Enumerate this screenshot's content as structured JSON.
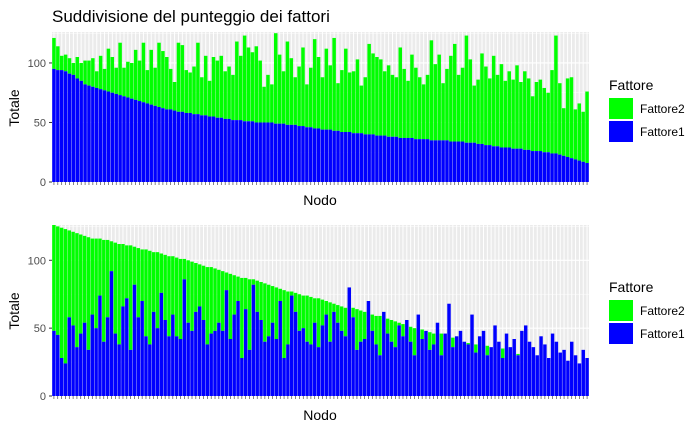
{
  "title": "Suddivisione del punteggio dei fattori",
  "colors": {
    "Fattore2": "#00ff00",
    "Fattore1": "#0000ff",
    "panel": "#ebebeb",
    "grid": "#ffffff"
  },
  "chart_data": [
    {
      "type": "bar",
      "stacked": true,
      "title": "Suddivisione del punteggio dei fattori",
      "xlabel": "Nodo",
      "ylabel": "Totale",
      "ylim": [
        0,
        126
      ],
      "yticks": [
        0,
        50,
        100
      ],
      "sorted_by": "Fattore1 descending",
      "legend": {
        "title": "Fattore",
        "entries": [
          "Fattore2",
          "Fattore1"
        ],
        "position": "right"
      },
      "series": [
        {
          "name": "Fattore1",
          "values": [
            95,
            94,
            94,
            93,
            91,
            90,
            87,
            85,
            82,
            81,
            80,
            79,
            78,
            77,
            76,
            75,
            74,
            73,
            72,
            71,
            70,
            69,
            68,
            67,
            66,
            65,
            64,
            63,
            62,
            61,
            61,
            60,
            59,
            59,
            58,
            58,
            57,
            57,
            56,
            56,
            55,
            55,
            54,
            54,
            53,
            53,
            52,
            52,
            52,
            51,
            51,
            51,
            50,
            50,
            50,
            50,
            50,
            49,
            49,
            49,
            48,
            48,
            48,
            47,
            47,
            46,
            46,
            45,
            45,
            44,
            44,
            44,
            43,
            43,
            42,
            42,
            42,
            41,
            41,
            41,
            40,
            40,
            40,
            39,
            39,
            39,
            38,
            38,
            38,
            37,
            37,
            37,
            37,
            36,
            36,
            36,
            36,
            35,
            35,
            35,
            35,
            35,
            34,
            34,
            34,
            34,
            33,
            33,
            33,
            32,
            32,
            31,
            31,
            30,
            30,
            29,
            29,
            29,
            28,
            28,
            28,
            27,
            27,
            26,
            26,
            26,
            25,
            25,
            24,
            24,
            23,
            22,
            21,
            20,
            19,
            18,
            17,
            16
          ]
        },
        {
          "name": "Fattore2",
          "values": [
            26,
            20,
            12,
            14,
            13,
            10,
            18,
            15,
            20,
            21,
            24,
            14,
            28,
            18,
            36,
            30,
            22,
            44,
            24,
            30,
            30,
            42,
            34,
            50,
            28,
            46,
            32,
            54,
            48,
            44,
            34,
            24,
            58,
            56,
            36,
            34,
            40,
            60,
            32,
            50,
            30,
            50,
            48,
            52,
            40,
            44,
            38,
            66,
            54,
            72,
            62,
            58,
            64,
            52,
            30,
            40,
            32,
            76,
            58,
            44,
            70,
            56,
            40,
            50,
            66,
            36,
            50,
            75,
            60,
            44,
            68,
            54,
            78,
            40,
            52,
            70,
            50,
            52,
            62,
            40,
            48,
            76,
            68,
            66,
            64,
            54,
            60,
            52,
            50,
            76,
            58,
            48,
            70,
            60,
            52,
            46,
            54,
            84,
            64,
            72,
            48,
            60,
            72,
            82,
            56,
            62,
            90,
            70,
            48,
            54,
            76,
            66,
            56,
            76,
            60,
            70,
            56,
            64,
            58,
            70,
            56,
            66,
            60,
            46,
            58,
            60,
            54,
            50,
            70,
            99,
            60,
            40,
            66,
            68,
            42,
            48,
            42,
            60
          ]
        }
      ]
    },
    {
      "type": "bar",
      "stacked": true,
      "title": "",
      "xlabel": "Nodo",
      "ylabel": "Totale",
      "ylim": [
        0,
        126
      ],
      "yticks": [
        0,
        50,
        100
      ],
      "sorted_by": "Totale descending",
      "legend": {
        "title": "Fattore",
        "entries": [
          "Fattore2",
          "Fattore1"
        ],
        "position": "right"
      },
      "series": [
        {
          "name": "Fattore1",
          "values": [
            48,
            45,
            28,
            24,
            58,
            52,
            36,
            46,
            54,
            34,
            60,
            50,
            74,
            40,
            58,
            92,
            46,
            38,
            66,
            72,
            34,
            82,
            58,
            70,
            44,
            38,
            62,
            50,
            76,
            56,
            44,
            60,
            44,
            42,
            86,
            54,
            48,
            62,
            66,
            56,
            38,
            46,
            48,
            54,
            48,
            78,
            42,
            60,
            70,
            28,
            64,
            34,
            82,
            62,
            56,
            40,
            44,
            54,
            42,
            70,
            28,
            38,
            74,
            62,
            48,
            50,
            40,
            38,
            54,
            36,
            52,
            60,
            40,
            62,
            54,
            48,
            44,
            80,
            58,
            34,
            40,
            42,
            70,
            48,
            38,
            30,
            62,
            46,
            40,
            36,
            52,
            44,
            56,
            40,
            30,
            60,
            42,
            48,
            34,
            38,
            54,
            30,
            46,
            68,
            36,
            44,
            48,
            40,
            38,
            60,
            32,
            44,
            48,
            30,
            36,
            52,
            40,
            28,
            46,
            36,
            42,
            30,
            48,
            52,
            40,
            36,
            30,
            44,
            38,
            28,
            46,
            40,
            32,
            34,
            26,
            40,
            30,
            24,
            34,
            28
          ]
        },
        {
          "name": "Fattore2",
          "values": [
            78,
            80,
            96,
            99,
            64,
            69,
            84,
            73,
            64,
            83,
            56,
            66,
            42,
            75,
            57,
            22,
            67,
            74,
            46,
            39,
            77,
            28,
            51,
            38,
            64,
            69,
            44,
            56,
            29,
            48,
            59,
            43,
            58,
            59,
            15,
            46,
            51,
            36,
            31,
            40,
            57,
            49,
            46,
            39,
            44,
            13,
            48,
            29,
            18,
            59,
            23,
            52,
            4,
            23,
            28,
            43,
            38,
            27,
            38,
            9,
            50,
            39,
            3,
            14,
            27,
            24,
            34,
            35,
            18,
            36,
            19,
            10,
            29,
            6,
            13,
            18,
            21,
            -14,
            7,
            30,
            23,
            20,
            -9,
            12,
            21,
            29,
            -4,
            11,
            16,
            19,
            2,
            9,
            -4,
            11,
            20,
            -11,
            7,
            0,
            13,
            8,
            -9,
            16,
            -1,
            -24,
            7,
            -2,
            -7,
            0,
            1,
            -22,
            6,
            -7,
            -12,
            7,
            0,
            -16,
            -5,
            7,
            -12,
            -3,
            -10,
            1,
            -18,
            -23,
            -12,
            -9,
            -4,
            -19,
            -14,
            -5,
            -24,
            -19,
            -12,
            -15,
            -8,
            -23,
            -14,
            -9,
            -23,
            -18
          ]
        }
      ]
    }
  ]
}
